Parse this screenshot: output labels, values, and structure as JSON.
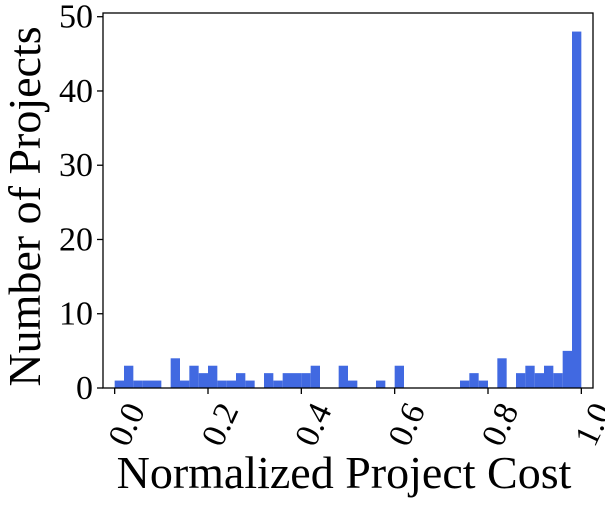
{
  "chart_data": {
    "type": "bar",
    "subtype": "histogram",
    "xlabel": "Normalized Project Cost",
    "ylabel": "Number of Projects",
    "xlim": [
      -0.025,
      1.025
    ],
    "ylim": [
      0,
      50.5
    ],
    "xticks": [
      "0.0",
      "0.2",
      "0.4",
      "0.6",
      "0.8",
      "1.0"
    ],
    "xtick_values": [
      0.0,
      0.2,
      0.4,
      0.6,
      0.8,
      1.0
    ],
    "yticks": [
      "0",
      "10",
      "20",
      "30",
      "40",
      "50"
    ],
    "ytick_values": [
      0,
      10,
      20,
      30,
      40,
      50
    ],
    "bin_width": 0.02,
    "bin_starts": [
      0.0,
      0.02,
      0.04,
      0.06,
      0.08,
      0.1,
      0.12,
      0.14,
      0.16,
      0.18,
      0.2,
      0.22,
      0.24,
      0.26,
      0.28,
      0.3,
      0.32,
      0.34,
      0.36,
      0.38,
      0.4,
      0.42,
      0.44,
      0.46,
      0.48,
      0.5,
      0.52,
      0.54,
      0.56,
      0.58,
      0.6,
      0.62,
      0.64,
      0.66,
      0.68,
      0.7,
      0.72,
      0.74,
      0.76,
      0.78,
      0.8,
      0.82,
      0.84,
      0.86,
      0.88,
      0.9,
      0.92,
      0.94,
      0.96,
      0.98
    ],
    "counts": [
      1,
      3,
      1,
      1,
      1,
      0,
      4,
      1,
      3,
      2,
      3,
      1,
      1,
      2,
      1,
      0,
      2,
      1,
      2,
      2,
      2,
      3,
      0,
      0,
      3,
      1,
      0,
      0,
      1,
      0,
      3,
      0,
      0,
      0,
      0,
      0,
      0,
      1,
      2,
      1,
      0,
      4,
      0,
      2,
      3,
      2,
      3,
      2,
      5,
      48
    ],
    "bar_color": "#4169e1",
    "grid": false
  }
}
